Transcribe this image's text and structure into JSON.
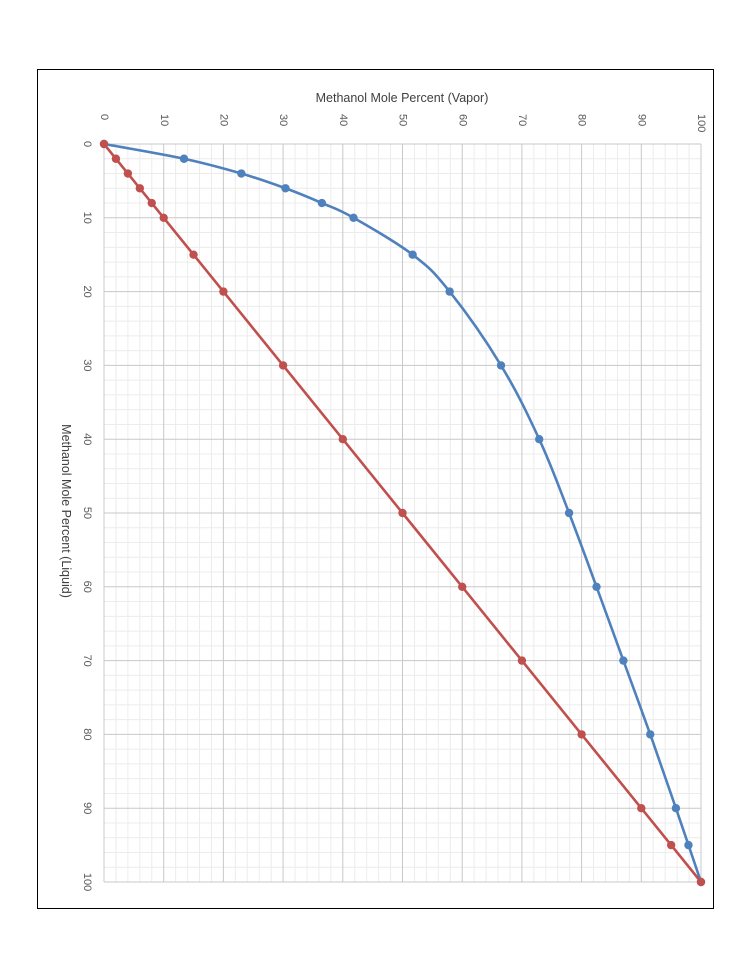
{
  "chart_data": {
    "type": "scatter",
    "orientation": "rotated-90-clockwise",
    "xlabel": "Methanol Mole Percent (Liquid)",
    "ylabel": "Methanol Mole Percent (Vapor)",
    "xlim": [
      0,
      100
    ],
    "ylim": [
      0,
      100
    ],
    "x_ticks": [
      "0",
      "10",
      "20",
      "30",
      "40",
      "50",
      "60",
      "70",
      "80",
      "90",
      "100"
    ],
    "y_ticks": [
      "0",
      "10",
      "20",
      "30",
      "40",
      "50",
      "60",
      "70",
      "80",
      "90",
      "100"
    ],
    "grid": true,
    "minor_grid": true,
    "legend": "none",
    "series": [
      {
        "color": "#4f81bd",
        "smooth": true,
        "x": [
          0,
          2,
          4,
          6,
          8,
          10,
          15,
          20,
          30,
          40,
          50,
          60,
          70,
          80,
          90,
          95,
          100
        ],
        "y": [
          0,
          13.4,
          23.0,
          30.4,
          36.5,
          41.8,
          51.7,
          57.9,
          66.5,
          72.9,
          77.9,
          82.5,
          87.0,
          91.5,
          95.8,
          97.9,
          100
        ]
      },
      {
        "color": "#c0504d",
        "smooth": false,
        "x": [
          0,
          2,
          4,
          6,
          8,
          10,
          15,
          20,
          30,
          40,
          50,
          60,
          70,
          80,
          90,
          95,
          100
        ],
        "y": [
          0,
          2,
          4,
          6,
          8,
          10,
          15,
          20,
          30,
          40,
          50,
          60,
          70,
          80,
          90,
          95,
          100
        ]
      }
    ]
  }
}
